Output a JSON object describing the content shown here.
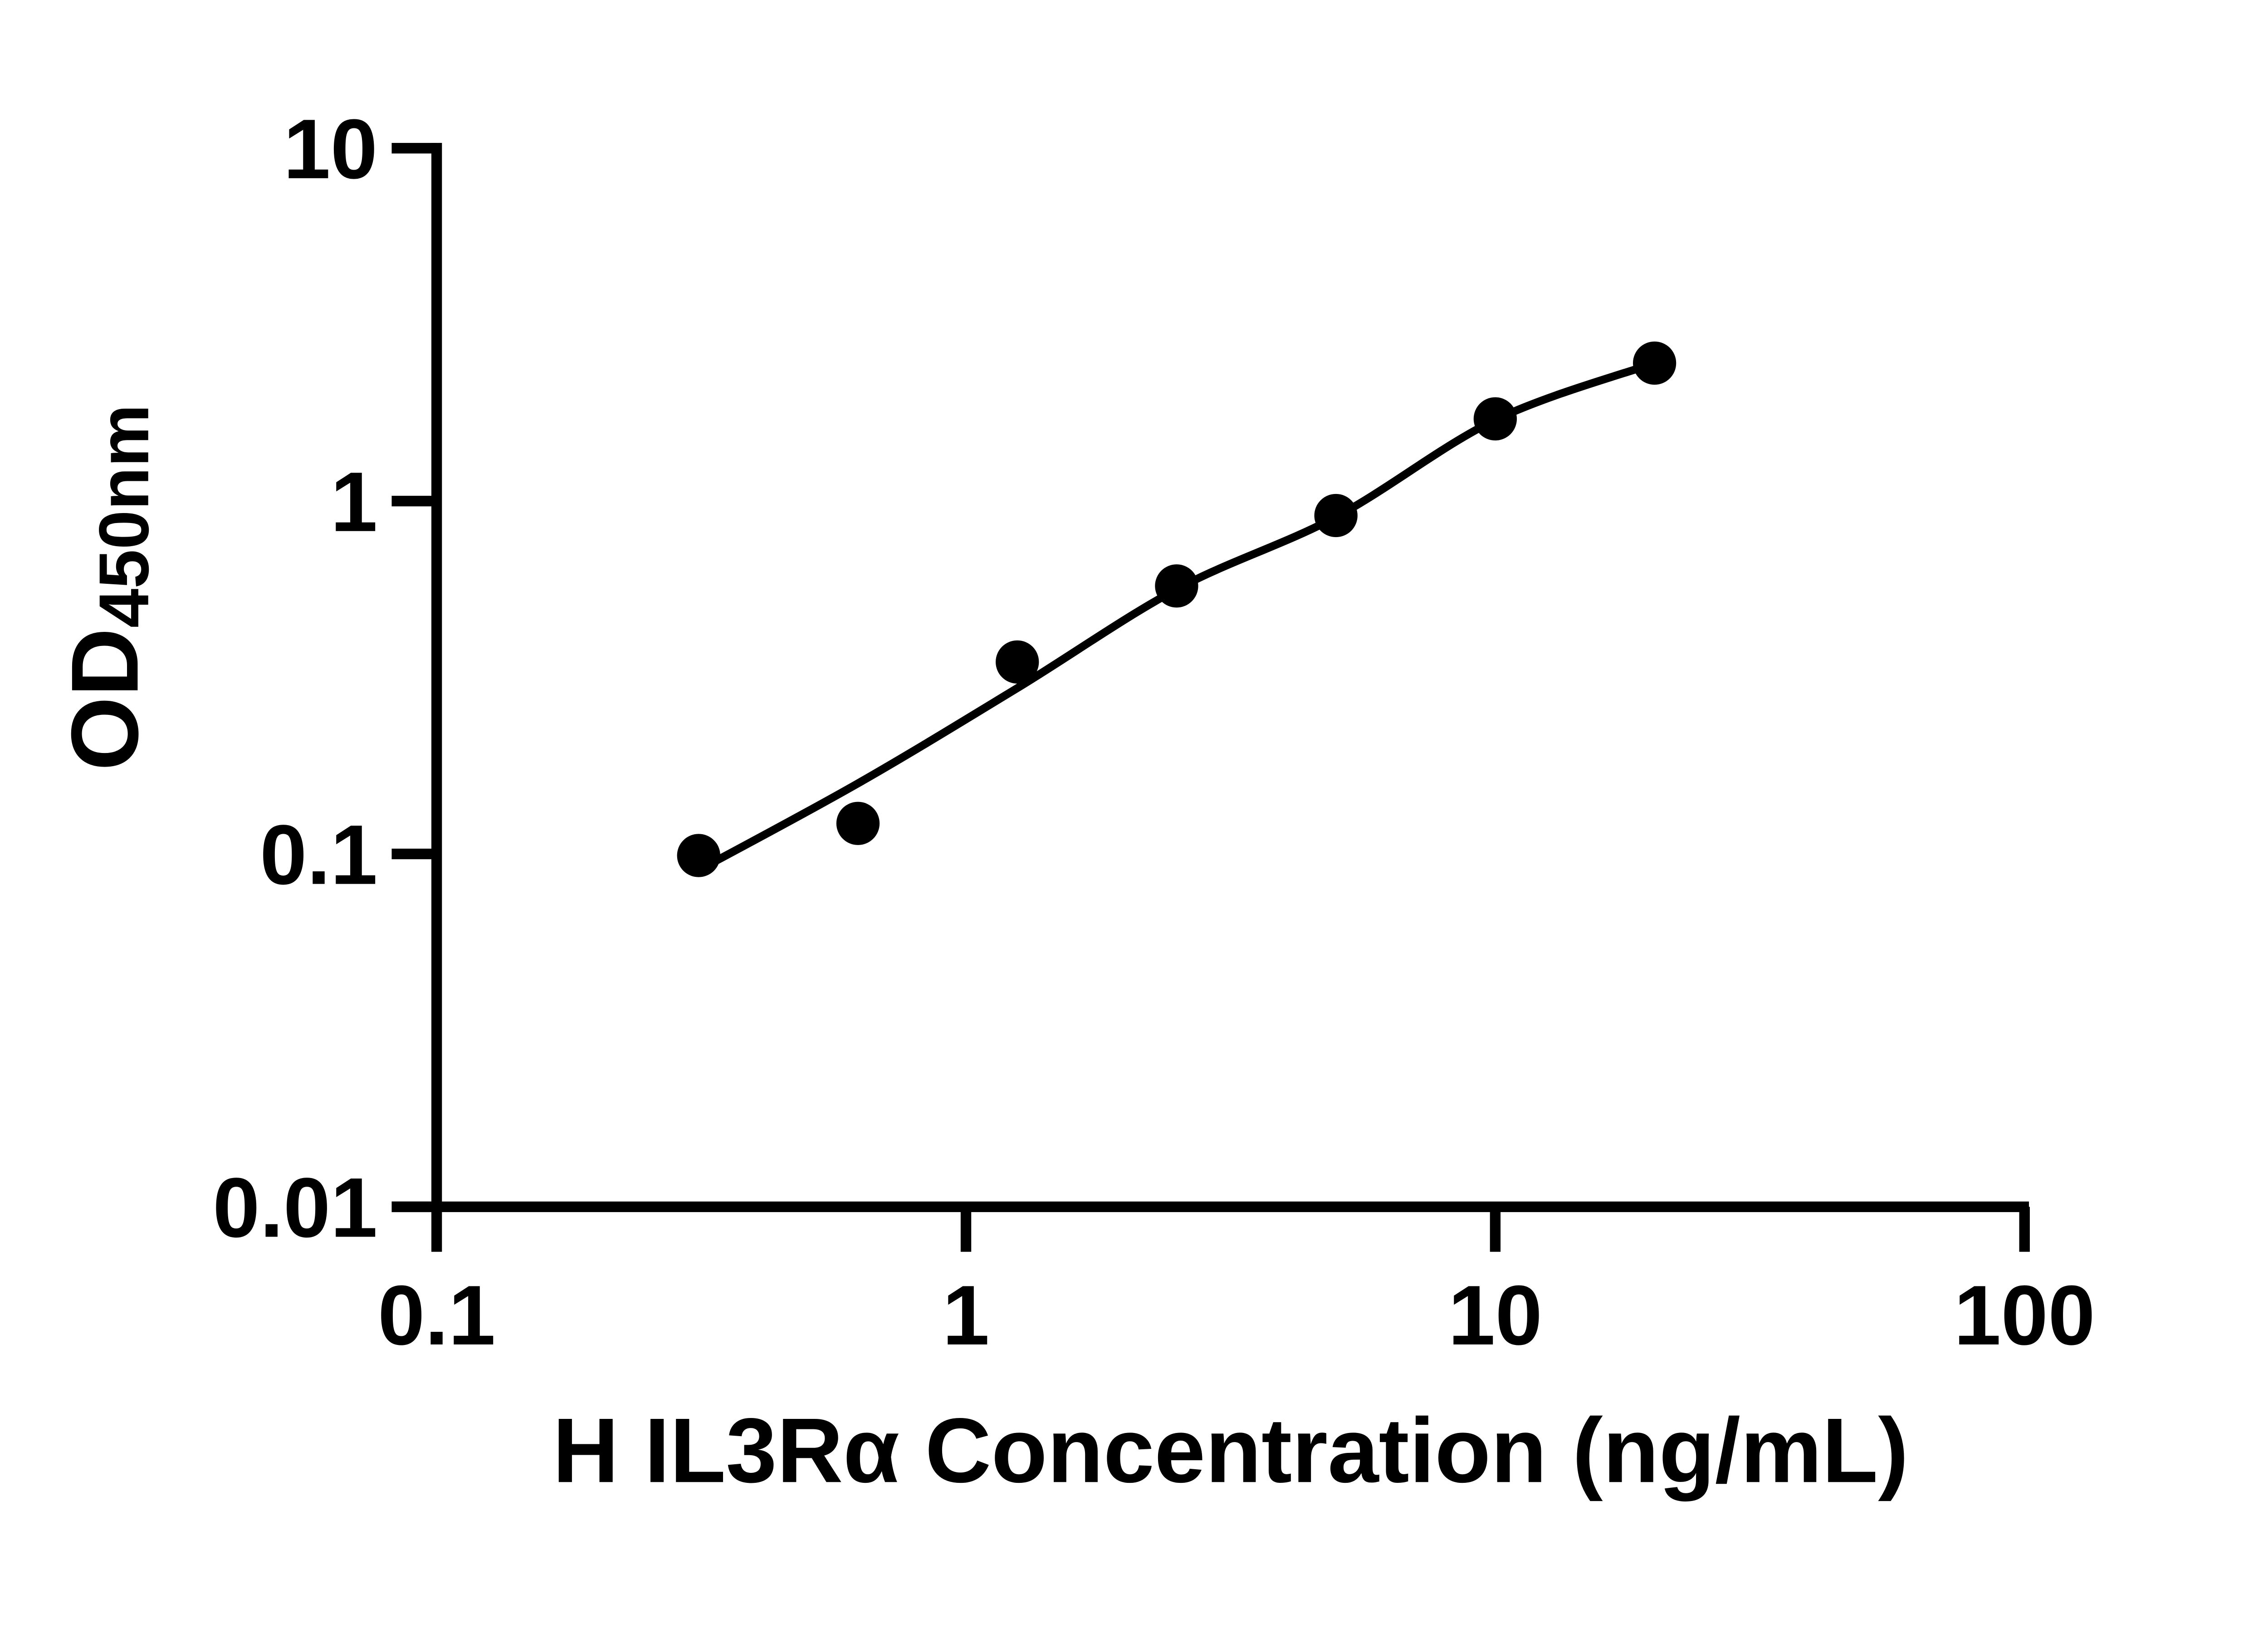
{
  "figure": {
    "background": "#ffffff",
    "foreground": "#000000"
  },
  "chart_data": {
    "type": "scatter",
    "title": "",
    "xlabel": "H IL3Rα Concentration (ng/mL)",
    "ylabel": "OD450nm",
    "ylabel_main": "OD",
    "ylabel_sub": "450nm",
    "x_scale": "log10",
    "y_scale": "log10",
    "xlim": [
      0.1,
      100
    ],
    "ylim": [
      0.01,
      10
    ],
    "x_tick_values": [
      0.1,
      1,
      10,
      100
    ],
    "x_tick_labels": [
      "0.1",
      "1",
      "10",
      "100"
    ],
    "y_tick_values": [
      10,
      1,
      0.1,
      0.01
    ],
    "y_tick_labels": [
      "10",
      "1",
      "0.1",
      "0.01"
    ],
    "grid": false,
    "legend": "none",
    "series": [
      {
        "name": "H IL3Ra standard curve points",
        "marker": "filled-circle",
        "color": "#000000",
        "x": [
          0.3125,
          0.625,
          1.25,
          2.5,
          5,
          10,
          20
        ],
        "y": [
          0.099,
          0.122,
          0.35,
          0.575,
          0.91,
          1.71,
          2.46
        ]
      }
    ],
    "fit_curve": {
      "name": "4PL fit line",
      "color": "#000000",
      "loglog_anchors": [
        [
          -0.51,
          -1.05
        ],
        [
          -0.204,
          -0.8
        ],
        [
          0.097,
          -0.53
        ],
        [
          0.398,
          -0.25
        ],
        [
          0.699,
          -0.045
        ],
        [
          1.0,
          0.23
        ],
        [
          1.301,
          0.391
        ]
      ]
    }
  }
}
